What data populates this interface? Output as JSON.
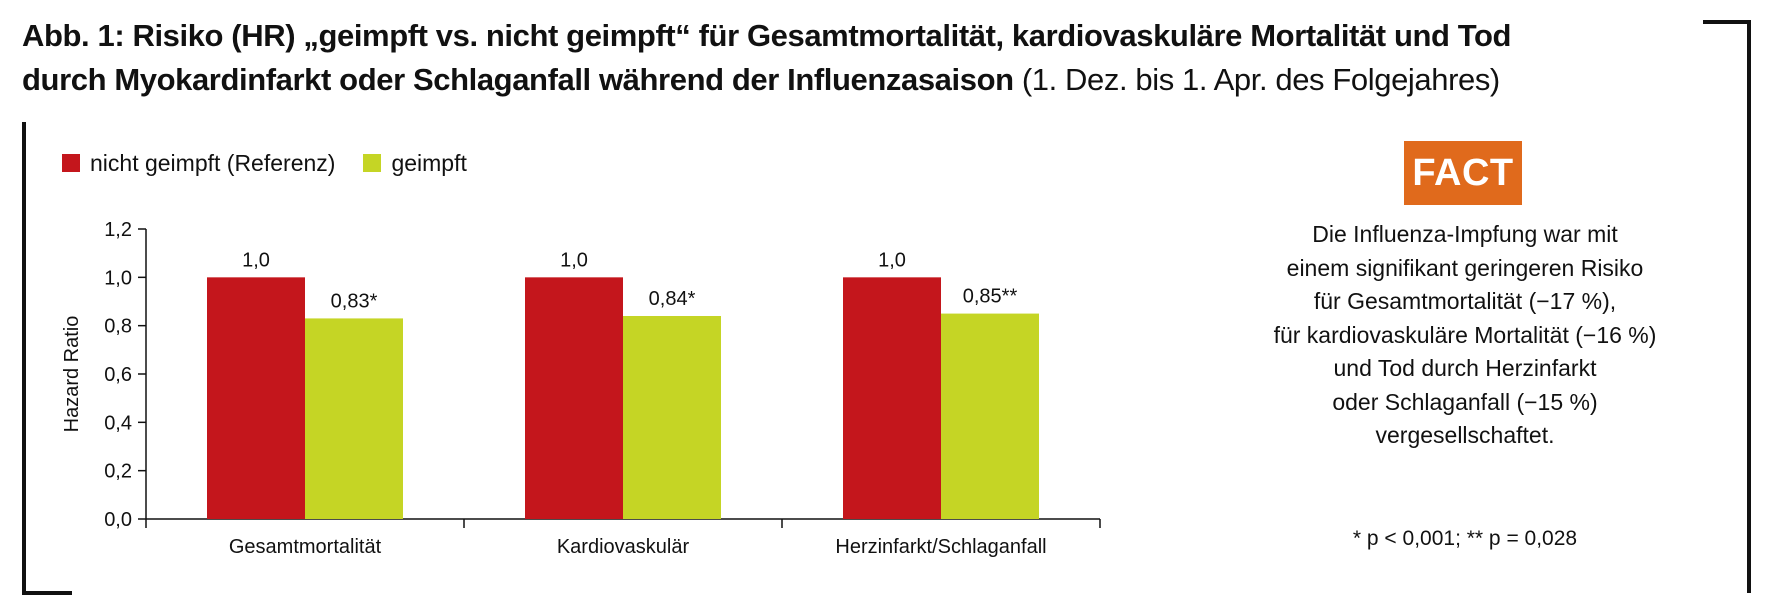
{
  "title": {
    "bold": "Abb. 1: Risiko (HR) „geimpft vs. nicht geimpft“ für Gesamtmortalität, kardiovaskuläre Mortalität und Tod durch Myokardinfarkt oder Schlaganfall während der Influenzasaison",
    "normal": " (1. Dez. bis 1. Apr. des Folgejahres)"
  },
  "fact": {
    "badge": "FACT",
    "text": "Die Influenza-Impfung war mit\neinem signifikant geringeren Risiko\nfür Gesamtmortalität (−17 %),\nfür kardiovaskuläre Mortalität (−16 %)\nund Tod durch Herzinfarkt\noder Schlaganfall (−15 %)\nvergesellschaftet.",
    "footnote": "* p < 0,001; ** p = 0,028"
  },
  "colors": {
    "not_vaccinated": "#c4161c",
    "vaccinated": "#c5d525",
    "fact_badge": "#e06a1c"
  },
  "chart_data": {
    "type": "bar",
    "categories": [
      "Gesamtmortalität",
      "Kardiovaskulär",
      "Herzinfarkt/Schlaganfall"
    ],
    "series": [
      {
        "name": "nicht geimpft (Referenz)",
        "values": [
          1.0,
          1.0,
          1.0
        ],
        "labels": [
          "1,0",
          "1,0",
          "1,0"
        ]
      },
      {
        "name": "geimpft",
        "values": [
          0.83,
          0.84,
          0.85
        ],
        "labels": [
          "0,83*",
          "0,84*",
          "0,85**"
        ]
      }
    ],
    "xlabel": "",
    "ylabel": "Hazard Ratio",
    "ylim": [
      0,
      1.2
    ],
    "yticks": [
      "0,0",
      "0,2",
      "0,4",
      "0,6",
      "0,8",
      "1,0",
      "1,2"
    ],
    "grid": false,
    "legend_position": "top-left"
  }
}
